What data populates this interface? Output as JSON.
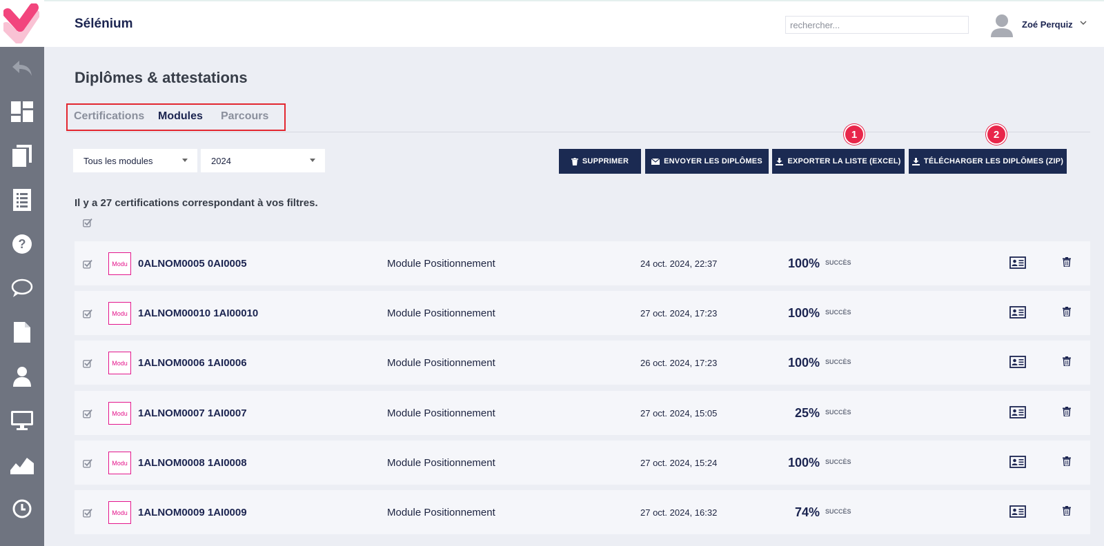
{
  "app": {
    "title": "Sélénium"
  },
  "search": {
    "placeholder": "rechercher..."
  },
  "user": {
    "name": "Zoé Perquiz"
  },
  "sidebar": {
    "items": [
      {
        "icon": "back-arrow-icon"
      },
      {
        "icon": "dashboard-icon"
      },
      {
        "icon": "copy-pages-icon"
      },
      {
        "icon": "list-icon"
      },
      {
        "icon": "help-icon"
      },
      {
        "icon": "chat-icon"
      },
      {
        "icon": "file-icon"
      },
      {
        "icon": "user-icon"
      },
      {
        "icon": "monitor-icon"
      },
      {
        "icon": "chart-icon"
      },
      {
        "icon": "clock-icon"
      }
    ]
  },
  "page": {
    "title": "Diplômes & attestations"
  },
  "tabs": [
    {
      "label": "Certifications",
      "active": false
    },
    {
      "label": "Modules",
      "active": true
    },
    {
      "label": "Parcours",
      "active": false
    }
  ],
  "filters": {
    "module": "Tous les modules",
    "year": "2024"
  },
  "actions": {
    "delete": "SUPPRIMER",
    "send": "ENVOYER LES DIPLÔMES",
    "export": "EXPORTER LA LISTE (EXCEL)",
    "download": "TÉLÉCHARGER LES DIPLÔMES (ZIP)"
  },
  "annotations": {
    "badge_1": "1",
    "badge_2": "2"
  },
  "result_count": "Il y a 27 certifications correspondant à vos filtres.",
  "rows": [
    {
      "thumb": "Modu",
      "name": "0ALNOM0005 0AI0005",
      "module": "Module Positionnement",
      "date": "24 oct. 2024, 22:37",
      "score": "100%",
      "status": "SUCCÈS"
    },
    {
      "thumb": "Modu",
      "name": "1ALNOM00010 1AI00010",
      "module": "Module Positionnement",
      "date": "27 oct. 2024, 17:23",
      "score": "100%",
      "status": "SUCCÈS"
    },
    {
      "thumb": "Modu",
      "name": "1ALNOM0006 1AI0006",
      "module": "Module Positionnement",
      "date": "26 oct. 2024, 17:23",
      "score": "100%",
      "status": "SUCCÈS"
    },
    {
      "thumb": "Modu",
      "name": "1ALNOM0007 1AI0007",
      "module": "Module Positionnement",
      "date": "27 oct. 2024, 15:05",
      "score": "25%",
      "status": "SUCCÈS"
    },
    {
      "thumb": "Modu",
      "name": "1ALNOM0008 1AI0008",
      "module": "Module Positionnement",
      "date": "27 oct. 2024, 15:24",
      "score": "100%",
      "status": "SUCCÈS"
    },
    {
      "thumb": "Modu",
      "name": "1ALNOM0009 1AI0009",
      "module": "Module Positionnement",
      "date": "27 oct. 2024, 16:32",
      "score": "74%",
      "status": "SUCCÈS"
    }
  ],
  "colors": {
    "primary": "#1b2a52",
    "sidebar": "#6f7480",
    "accent_pink": "#e4168c",
    "badge": "#e8264a",
    "highlight": "#e3262f"
  }
}
